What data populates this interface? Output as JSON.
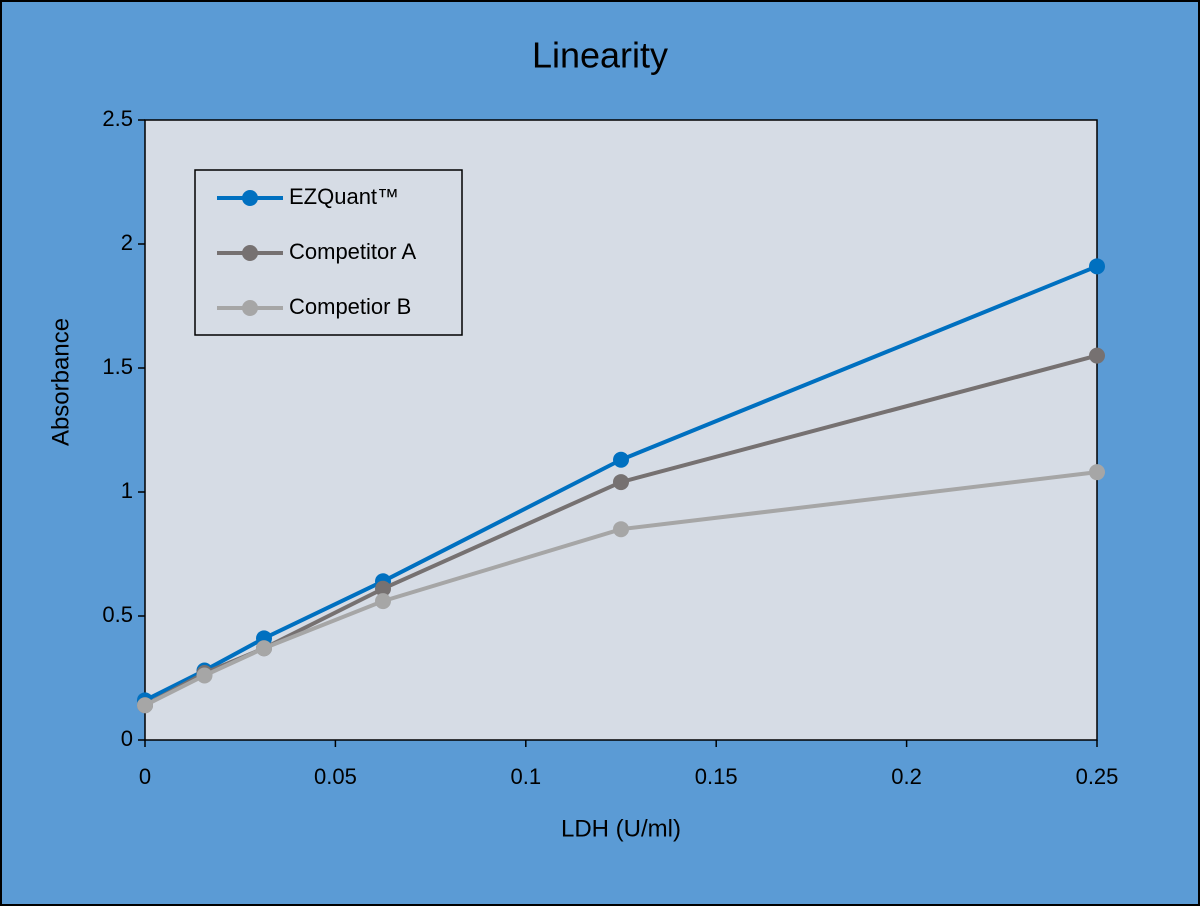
{
  "chart_data": {
    "type": "line",
    "title": "Linearity",
    "x_label": "LDH (U/ml)",
    "y_label": "Absorbance",
    "x": [
      0,
      0.015625,
      0.03125,
      0.0625,
      0.125,
      0.25
    ],
    "series": [
      {
        "name": "EZQuant™",
        "color": "#0070c0",
        "values": [
          0.16,
          0.28,
          0.41,
          0.64,
          1.13,
          1.91
        ]
      },
      {
        "name": "Competitor A",
        "color": "#767171",
        "values": [
          0.14,
          0.27,
          0.37,
          0.61,
          1.04,
          1.55
        ]
      },
      {
        "name": "Competior B",
        "color": "#a6a6a6",
        "values": [
          0.14,
          0.26,
          0.37,
          0.56,
          0.85,
          1.08
        ]
      }
    ],
    "xlim": [
      0,
      0.25
    ],
    "xticks": [
      0,
      0.05,
      0.1,
      0.15,
      0.2,
      0.25
    ],
    "ylim": [
      0,
      2.5
    ],
    "yticks": [
      0,
      0.5,
      1,
      1.5,
      2,
      2.5
    ],
    "grid": false,
    "legend": "upper left"
  }
}
